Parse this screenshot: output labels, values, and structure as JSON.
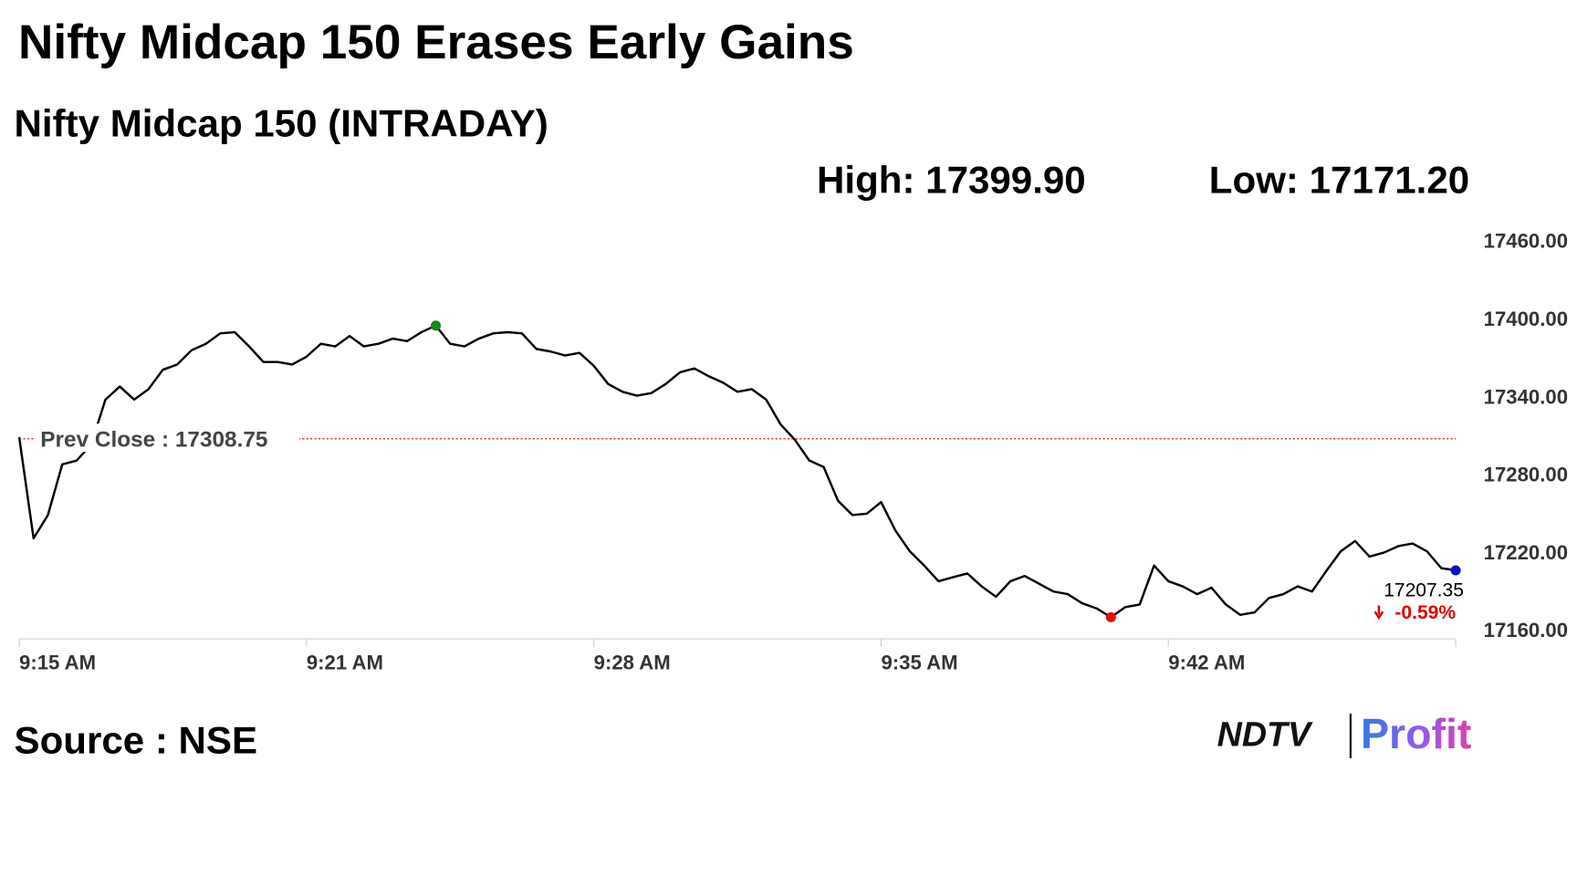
{
  "chart_data": {
    "type": "line",
    "title": "Nifty Midcap 150 Erases Early Gains",
    "subtitle": "Nifty Midcap 150 (INTRADAY)",
    "high": {
      "value": 17399.9,
      "label": "High: 17399.90"
    },
    "low": {
      "value": 17171.2,
      "label": "Low: 17171.20"
    },
    "prev_close": {
      "value": 17308.75,
      "label": "Prev Close : 17308.75"
    },
    "last_label": "17207.35",
    "change": {
      "value": -0.59,
      "label": "-0.59%"
    },
    "source": "Source : NSE",
    "logo": [
      "NDTV",
      "Profit"
    ],
    "color": "#000000",
    "values": [
      17310,
      17232,
      17250,
      17289,
      17292,
      17304,
      17339,
      17349,
      17339,
      17347,
      17362,
      17366,
      17377,
      17382,
      17390,
      17391,
      17380,
      17368,
      17368,
      17366,
      17372,
      17382,
      17380,
      17388,
      17380,
      17382,
      17386,
      17384,
      17391,
      17396,
      17382,
      17380,
      17386,
      17390,
      17391,
      17390,
      17378,
      17376,
      17373,
      17375,
      17365,
      17351,
      17345,
      17342,
      17344,
      17351,
      17360,
      17363,
      17357,
      17352,
      17345,
      17347,
      17339,
      17320,
      17308,
      17292,
      17287,
      17261,
      17250,
      17251,
      17260,
      17238,
      17222,
      17211,
      17199,
      17202,
      17205,
      17195,
      17187,
      17199,
      17203,
      17197,
      17191,
      17189,
      17182,
      17178,
      17171.2,
      17179,
      17181,
      17211,
      17199,
      17195,
      17189,
      17194,
      17181,
      17173,
      17175,
      17186,
      17189,
      17195,
      17191,
      17207,
      17222,
      17230,
      17218,
      17221,
      17226,
      17228,
      17222,
      17209,
      17207.35
    ],
    "xlim": [
      0,
      100
    ],
    "xticks": [
      {
        "value": 0,
        "label": "9:15 AM"
      },
      {
        "value": 20,
        "label": "9:21 AM"
      },
      {
        "value": 40,
        "label": "9:28 AM"
      },
      {
        "value": 60,
        "label": "9:35 AM"
      },
      {
        "value": 80,
        "label": "9:42 AM"
      }
    ],
    "ylim": [
      17160,
      17460
    ],
    "yticks": [
      {
        "value": 17160,
        "label": "17160.00"
      },
      {
        "value": 17220,
        "label": "17220.00"
      },
      {
        "value": 17280,
        "label": "17280.00"
      },
      {
        "value": 17340,
        "label": "17340.00"
      },
      {
        "value": 17400,
        "label": "17400.00"
      },
      {
        "value": 17460,
        "label": "17460.00"
      }
    ],
    "grid": false
  }
}
